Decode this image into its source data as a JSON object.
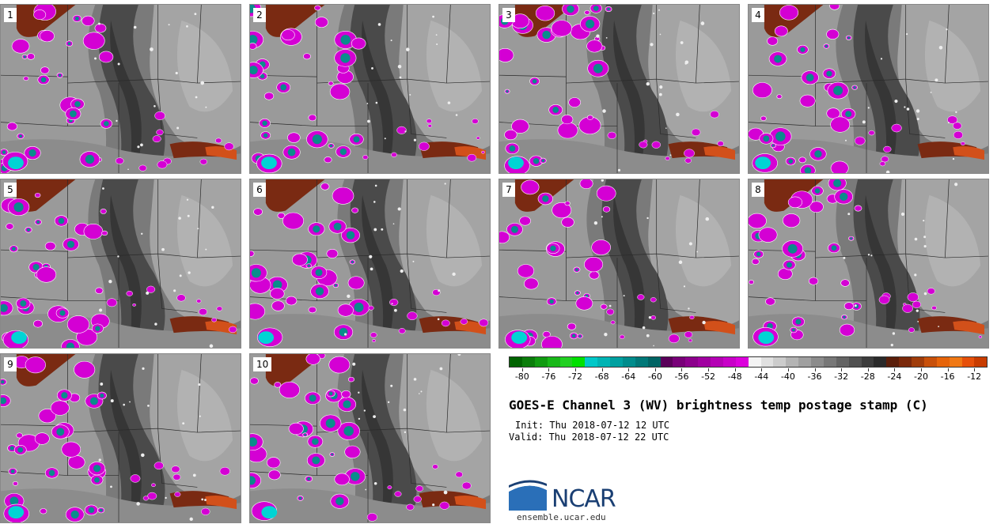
{
  "panels": [
    {
      "label": "1"
    },
    {
      "label": "2"
    },
    {
      "label": "3"
    },
    {
      "label": "4"
    },
    {
      "label": "5"
    },
    {
      "label": "6"
    },
    {
      "label": "7"
    },
    {
      "label": "8"
    },
    {
      "label": "9"
    },
    {
      "label": "10"
    }
  ],
  "colorbar": {
    "colors": [
      "#006400",
      "#0a7d0a",
      "#109b10",
      "#18b818",
      "#22d022",
      "#00e000",
      "#00c8c8",
      "#00b4b4",
      "#00a0a0",
      "#008c8c",
      "#007878",
      "#006464",
      "#5a005a",
      "#780078",
      "#8c008c",
      "#a000a0",
      "#b400b4",
      "#c800c8",
      "#dc00dc",
      "#f4f4f4",
      "#e0e0e0",
      "#cccccc",
      "#b4b4b4",
      "#a0a0a0",
      "#8c8c8c",
      "#787878",
      "#646464",
      "#505050",
      "#3c3c3c",
      "#2a2a2a",
      "#5a1e0a",
      "#7a280a",
      "#a03c0a",
      "#c8500a",
      "#e6640a",
      "#f07814",
      "#e6500a",
      "#c83c00"
    ],
    "tick_labels": [
      "-80",
      "-76",
      "-72",
      "-68",
      "-64",
      "-60",
      "-56",
      "-52",
      "-48",
      "-44",
      "-40",
      "-36",
      "-32",
      "-28",
      "-24",
      "-20",
      "-16",
      "-12"
    ],
    "min": -82,
    "max": -10
  },
  "title": "GOES-E Channel 3 (WV) brightness temp postage stamp (C)",
  "init": "Init: Thu 2018-07-12 12 UTC",
  "valid": "Valid: Thu 2018-07-12 22 UTC",
  "logo_text": "NCAR",
  "site": "ensemble.ucar.edu",
  "colors": {
    "magenta": "#d400d4",
    "teal": "#0a8c8c",
    "cyan": "#00d4d4",
    "brown": "#7a2a12",
    "orange": "#d2501a",
    "dark_grey": "#3a3a3a",
    "light_grey": "#b0b0b0",
    "ncar_blue": "#1a3f73"
  }
}
